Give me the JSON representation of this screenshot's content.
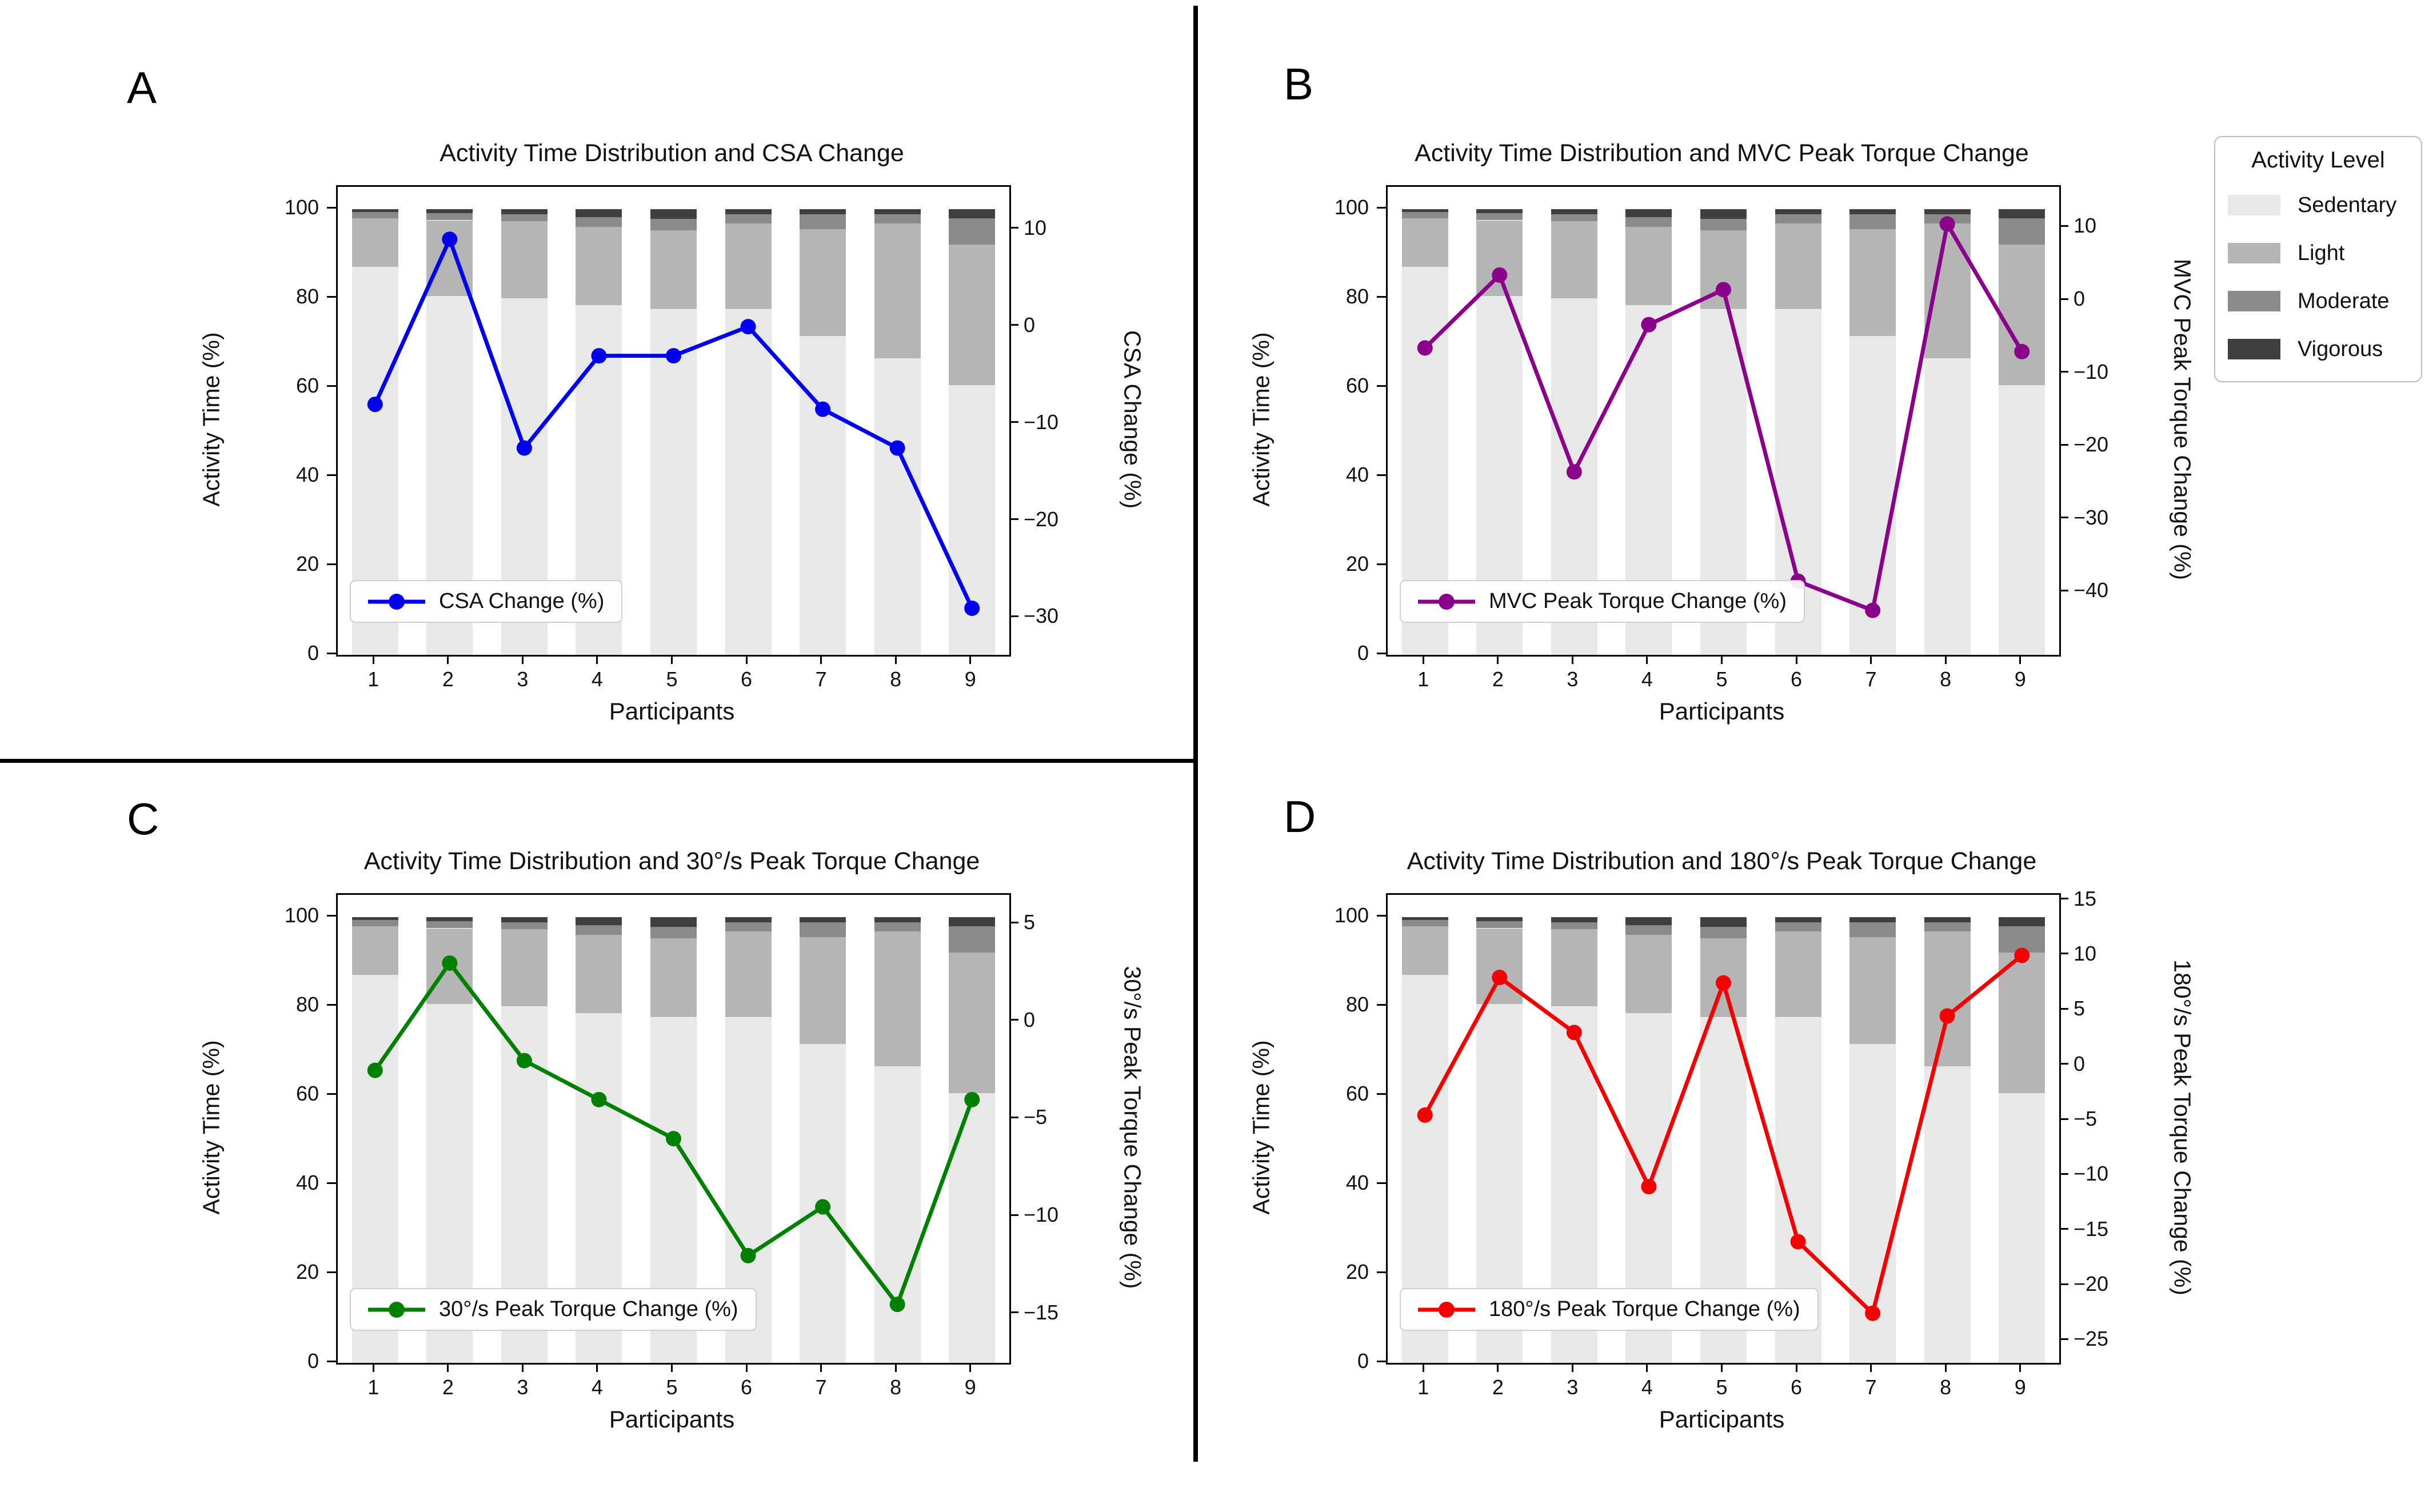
{
  "chart_data": {
    "type": "stacked-bar+line",
    "categories": [
      "1",
      "2",
      "3",
      "4",
      "5",
      "6",
      "7",
      "8",
      "9"
    ],
    "xlabel": "Participants",
    "ylabel_left": "Activity Time (%)",
    "left_ticks": [
      0,
      20,
      40,
      60,
      80,
      100
    ],
    "left_max": 105,
    "grid": "off",
    "activity_series": [
      {
        "name": "Sedentary",
        "color": "#E8E8E8",
        "values": [
          87,
          80.5,
          80,
          78.5,
          77.5,
          77.5,
          71.5,
          66.5,
          60.5
        ]
      },
      {
        "name": "Light",
        "color": "#B5B5B5",
        "values": [
          11,
          17,
          17.3,
          17.5,
          17.8,
          19.3,
          24,
          30.3,
          31.6
        ]
      },
      {
        "name": "Moderate",
        "color": "#8A8A8A",
        "values": [
          1.3,
          1.6,
          1.6,
          2.2,
          2.5,
          2.1,
          3.3,
          2.1,
          5.9
        ]
      },
      {
        "name": "Vigorous",
        "color": "#3F3F3F",
        "values": [
          0.7,
          0.9,
          1.1,
          1.8,
          2.2,
          1.1,
          1.2,
          1.1,
          2.0
        ]
      }
    ],
    "legend": {
      "title": "Activity Level",
      "position": "upper right outside",
      "entries": [
        "Sedentary",
        "Light",
        "Moderate",
        "Vigorous"
      ]
    },
    "panels": [
      {
        "panel_label": "A",
        "title": "Activity Time Distribution and CSA Change",
        "line_label": "CSA Change (%)",
        "ylabel_right": "CSA Change (%)",
        "color": "#0000EE",
        "values": [
          -8,
          9,
          -12.5,
          -3,
          -3,
          0,
          -8.5,
          -12.5,
          -29
        ],
        "right_ticks": [
          10,
          0,
          -10,
          -20,
          -30
        ],
        "right_range": [
          14.4,
          -33.8
        ]
      },
      {
        "panel_label": "B",
        "title": "Activity Time Distribution and MVC Peak Torque Change",
        "line_label": "MVC Peak Torque Change (%)",
        "ylabel_right": "MVC Peak Torque Change (%)",
        "color": "#8B008B",
        "values": [
          -6.5,
          3.5,
          -23.5,
          -3.3,
          1.5,
          -38.5,
          -42.5,
          10.5,
          -7
        ],
        "right_ticks": [
          10,
          0,
          -10,
          -20,
          -30,
          -40
        ],
        "right_range": [
          15.6,
          -48.6
        ]
      },
      {
        "panel_label": "C",
        "title": "Activity Time Distribution and 30°/s Peak Torque Change",
        "line_label": "30°/s Peak Torque Change (%)",
        "ylabel_right": "30°/s Peak Torque Change (%)",
        "color": "#008000",
        "values": [
          -2.5,
          3,
          -2,
          -4,
          -6,
          -12,
          -9.5,
          -14.5,
          -4
        ],
        "right_ticks": [
          5,
          0,
          -5,
          -10,
          -15
        ],
        "right_range": [
          6.5,
          -17.5
        ]
      },
      {
        "panel_label": "D",
        "title": "Activity Time Distribution and 180°/s Peak Torque Change",
        "line_label": "180°/s Peak Torque Change (%)",
        "ylabel_right": "180°/s Peak Torque Change (%)",
        "color": "#F40000",
        "values": [
          -4.5,
          8,
          3,
          -11,
          7.5,
          -16,
          -22.5,
          4.5,
          10
        ],
        "right_ticks": [
          15,
          10,
          5,
          0,
          -5,
          -10,
          -15,
          -20,
          -25
        ],
        "right_range": [
          15.5,
          -27
        ]
      }
    ]
  }
}
